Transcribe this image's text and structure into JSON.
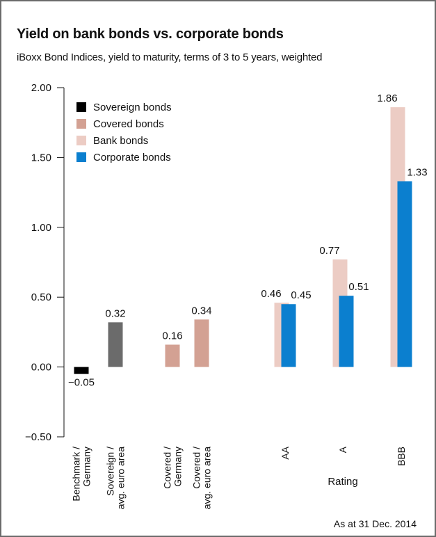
{
  "title": "Yield on bank bonds vs. corporate bonds",
  "subtitle": "iBoxx Bond Indices, yield to maturity, terms of 3 to 5 years, weighted",
  "footnote": "As at 31 Dec. 2014",
  "colors": {
    "sovereign": "#000000",
    "sovereign_avg": "#6b6b6b",
    "covered": "#d3a193",
    "bank": "#ecccc4",
    "corporate": "#0b7fcf"
  },
  "chart_data": {
    "type": "bar",
    "ylim": [
      -0.5,
      2.0
    ],
    "yticks": [
      "2.00",
      "1.50",
      "1.00",
      "0.50",
      "0.00",
      "−0.50"
    ],
    "ytick_values": [
      2.0,
      1.5,
      1.0,
      0.5,
      0.0,
      -0.5
    ],
    "grid": false,
    "legend_position": "top-left",
    "legend": [
      {
        "name": "Sovereign bonds",
        "color_key": "sovereign"
      },
      {
        "name": "Covered bonds",
        "color_key": "covered"
      },
      {
        "name": "Bank bonds",
        "color_key": "bank"
      },
      {
        "name": "Corporate bonds",
        "color_key": "corporate"
      }
    ],
    "xlabel": "Rating",
    "categories": [
      {
        "label_lines": [
          "Benchmark /",
          "Germany"
        ],
        "bars": [
          {
            "series": "Sovereign bonds",
            "value": -0.05,
            "label": "−0.05",
            "color_key": "sovereign"
          }
        ]
      },
      {
        "label_lines": [
          "Sovereign /",
          "avg. euro area"
        ],
        "bars": [
          {
            "series": "Sovereign bonds",
            "value": 0.32,
            "label": "0.32",
            "color_key": "sovereign_avg"
          }
        ]
      },
      {
        "label_lines": [
          "Covered /",
          "Germany"
        ],
        "bars": [
          {
            "series": "Covered bonds",
            "value": 0.16,
            "label": "0.16",
            "color_key": "covered"
          }
        ]
      },
      {
        "label_lines": [
          "Covered /",
          "avg. euro area"
        ],
        "bars": [
          {
            "series": "Covered bonds",
            "value": 0.34,
            "label": "0.34",
            "color_key": "covered"
          }
        ]
      },
      {
        "label_lines": [
          "AA"
        ],
        "bars": [
          {
            "series": "Bank bonds",
            "value": 0.46,
            "label": "0.46",
            "color_key": "bank"
          },
          {
            "series": "Corporate bonds",
            "value": 0.45,
            "label": "0.45",
            "color_key": "corporate"
          }
        ]
      },
      {
        "label_lines": [
          "A"
        ],
        "bars": [
          {
            "series": "Bank bonds",
            "value": 0.77,
            "label": "0.77",
            "color_key": "bank"
          },
          {
            "series": "Corporate bonds",
            "value": 0.51,
            "label": "0.51",
            "color_key": "corporate"
          }
        ]
      },
      {
        "label_lines": [
          "BBB"
        ],
        "bars": [
          {
            "series": "Bank bonds",
            "value": 1.86,
            "label": "1.86",
            "color_key": "bank"
          },
          {
            "series": "Corporate bonds",
            "value": 1.33,
            "label": "1.33",
            "color_key": "corporate"
          }
        ]
      }
    ]
  }
}
